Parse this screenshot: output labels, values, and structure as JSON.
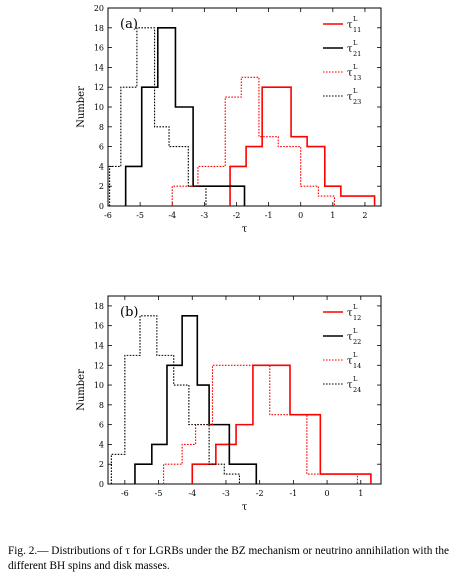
{
  "caption": "Fig. 2.— Distributions of τ for LGRBs under the BZ mechanism or neutrino annihilation with the different BH spins and disk masses.",
  "chart_data": [
    {
      "type": "histogram",
      "panel_label": "(a)",
      "xlabel": "τ",
      "ylabel": "Number",
      "xlim": [
        -6,
        2.5
      ],
      "ylim": [
        0,
        20
      ],
      "xticks": [
        -6,
        -5,
        -4,
        -3,
        -2,
        -1,
        0,
        1,
        2
      ],
      "yticks": [
        0,
        2,
        4,
        6,
        8,
        10,
        12,
        14,
        16,
        18,
        20
      ],
      "legend_position": "top-right",
      "series": [
        {
          "name": "τ 11 L",
          "sym": "τ",
          "sup": "L",
          "sub": "11",
          "color": "#ff0000",
          "style": "solid",
          "edges": [
            -2.2,
            -1.7,
            -1.2,
            -0.3,
            0.2,
            0.75,
            1.25,
            2.3
          ],
          "counts": [
            4,
            6,
            12,
            7,
            6,
            2,
            1
          ]
        },
        {
          "name": "τ 21 L",
          "sym": "τ",
          "sup": "L",
          "sub": "21",
          "color": "#000000",
          "style": "solid",
          "edges": [
            -5.45,
            -4.95,
            -4.45,
            -3.9,
            -3.35,
            -2.75,
            -1.75
          ],
          "counts": [
            4,
            12,
            18,
            10,
            2,
            2
          ]
        },
        {
          "name": "τ 13 L",
          "sym": "τ",
          "sup": "L",
          "sub": "13",
          "color": "#ff0000",
          "style": "dotted",
          "edges": [
            -4.0,
            -3.2,
            -2.35,
            -1.85,
            -1.3,
            -0.7,
            0.0,
            0.55,
            1.05
          ],
          "counts": [
            2,
            4,
            11,
            13,
            7,
            6,
            2,
            1
          ]
        },
        {
          "name": "τ 23 L",
          "sym": "τ",
          "sup": "L",
          "sub": "23",
          "color": "#000000",
          "style": "dotted",
          "edges": [
            -5.95,
            -5.6,
            -5.1,
            -4.55,
            -4.1,
            -3.5,
            -2.95
          ],
          "counts": [
            4,
            12,
            18,
            8,
            6,
            2
          ]
        }
      ]
    },
    {
      "type": "histogram",
      "panel_label": "(b)",
      "xlabel": "τ",
      "ylabel": "Number",
      "xlim": [
        -6.5,
        1.6
      ],
      "ylim": [
        0,
        19
      ],
      "xticks": [
        -6,
        -5,
        -4,
        -3,
        -2,
        -1,
        0,
        1
      ],
      "yticks": [
        0,
        2,
        4,
        6,
        8,
        10,
        12,
        14,
        16,
        18
      ],
      "legend_position": "top-right",
      "series": [
        {
          "name": "τ 12 L",
          "sym": "τ",
          "sup": "L",
          "sub": "12",
          "color": "#ff0000",
          "style": "solid",
          "edges": [
            -4.0,
            -3.3,
            -2.7,
            -2.2,
            -1.1,
            -0.2,
            1.3
          ],
          "counts": [
            2,
            4,
            6,
            12,
            7,
            1
          ]
        },
        {
          "name": "τ 22 L",
          "sym": "τ",
          "sup": "L",
          "sub": "22",
          "color": "#000000",
          "style": "solid",
          "edges": [
            -5.7,
            -5.2,
            -4.75,
            -4.3,
            -3.85,
            -3.5,
            -2.9,
            -2.1
          ],
          "counts": [
            2,
            4,
            12,
            17,
            10,
            6,
            2
          ]
        },
        {
          "name": "τ 14 L",
          "sym": "τ",
          "sup": "L",
          "sub": "14",
          "color": "#ff0000",
          "style": "dotted",
          "edges": [
            -4.85,
            -4.3,
            -3.9,
            -3.4,
            -2.5,
            -1.7,
            -0.6,
            0.3,
            0.9
          ],
          "counts": [
            2,
            4,
            6,
            12,
            12,
            7,
            1,
            1
          ]
        },
        {
          "name": "τ 24 L",
          "sym": "τ",
          "sup": "L",
          "sub": "24",
          "color": "#000000",
          "style": "dotted",
          "edges": [
            -6.4,
            -6.0,
            -5.55,
            -5.05,
            -4.55,
            -4.1,
            -3.5,
            -3.05,
            -2.6
          ],
          "counts": [
            3,
            13,
            17,
            13,
            10,
            6,
            2,
            1
          ]
        }
      ]
    }
  ]
}
